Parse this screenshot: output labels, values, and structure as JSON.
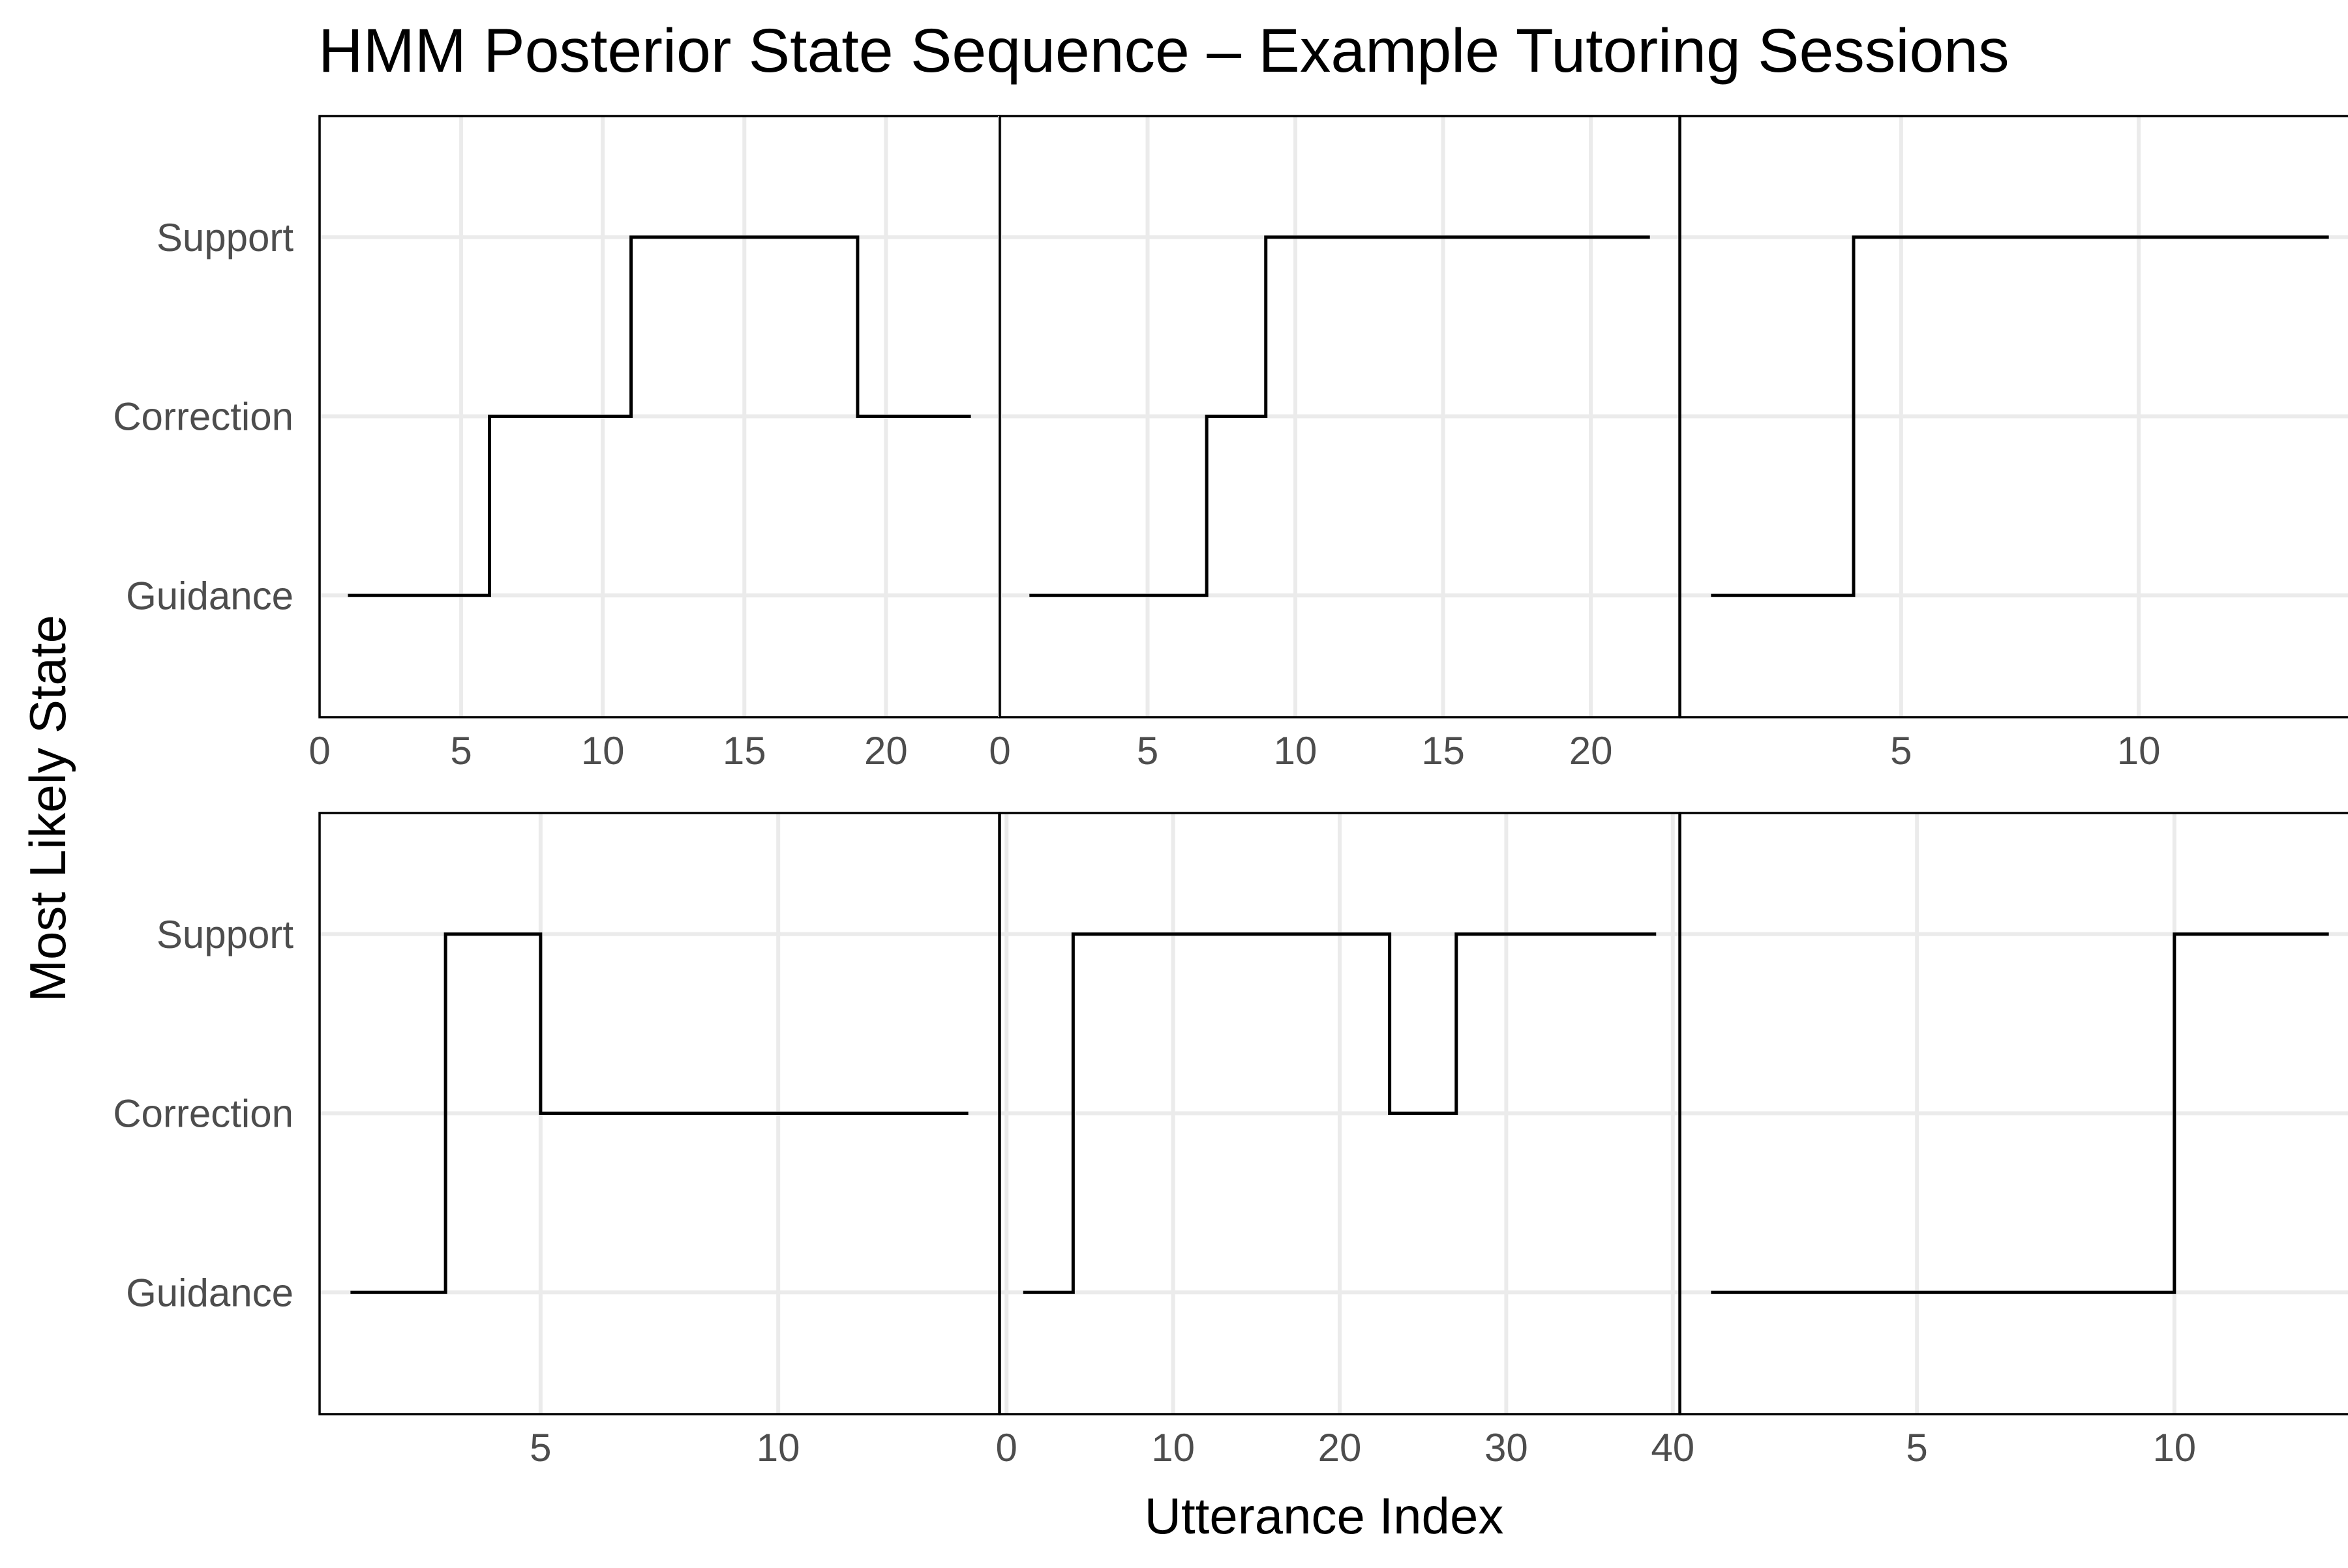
{
  "chart_data": {
    "type": "line",
    "subtype": "step",
    "title": "HMM Posterior State Sequence – Example Tutoring Sessions",
    "xlabel": "Utterance Index",
    "ylabel": "Most Likely State",
    "y_categories": [
      "Guidance",
      "Correction",
      "Support"
    ],
    "grid": true,
    "facets": [
      {
        "xlim": [
          0,
          24
        ],
        "x_ticks": [
          0,
          5,
          10,
          15,
          20
        ],
        "steps": [
          {
            "x": 1,
            "state": "Guidance"
          },
          {
            "x": 6,
            "state": "Correction"
          },
          {
            "x": 11,
            "state": "Support"
          },
          {
            "x": 19,
            "state": "Correction"
          },
          {
            "x": 23,
            "state": "Correction"
          }
        ]
      },
      {
        "xlim": [
          0,
          23
        ],
        "x_ticks": [
          0,
          5,
          10,
          15,
          20
        ],
        "steps": [
          {
            "x": 1,
            "state": "Guidance"
          },
          {
            "x": 7,
            "state": "Correction"
          },
          {
            "x": 9,
            "state": "Support"
          },
          {
            "x": 22,
            "state": "Support"
          }
        ]
      },
      {
        "xlim": [
          0.35,
          14.65
        ],
        "x_ticks": [
          5,
          10
        ],
        "steps": [
          {
            "x": 1,
            "state": "Guidance"
          },
          {
            "x": 4,
            "state": "Support"
          },
          {
            "x": 14,
            "state": "Support"
          }
        ]
      },
      {
        "xlim": [
          0.35,
          14.65
        ],
        "x_ticks": [
          5,
          10
        ],
        "steps": [
          {
            "x": 1,
            "state": "Guidance"
          },
          {
            "x": 3,
            "state": "Support"
          },
          {
            "x": 5,
            "state": "Correction"
          },
          {
            "x": 14,
            "state": "Correction"
          }
        ]
      },
      {
        "xlim": [
          -0.4,
          40.4
        ],
        "x_ticks": [
          0,
          10,
          20,
          30,
          40
        ],
        "steps": [
          {
            "x": 1,
            "state": "Guidance"
          },
          {
            "x": 4,
            "state": "Support"
          },
          {
            "x": 23,
            "state": "Correction"
          },
          {
            "x": 27,
            "state": "Support"
          },
          {
            "x": 39,
            "state": "Support"
          }
        ]
      },
      {
        "xlim": [
          0.4,
          13.6
        ],
        "x_ticks": [
          5,
          10
        ],
        "steps": [
          {
            "x": 1,
            "state": "Guidance"
          },
          {
            "x": 10,
            "state": "Support"
          },
          {
            "x": 13,
            "state": "Support"
          }
        ]
      }
    ]
  }
}
